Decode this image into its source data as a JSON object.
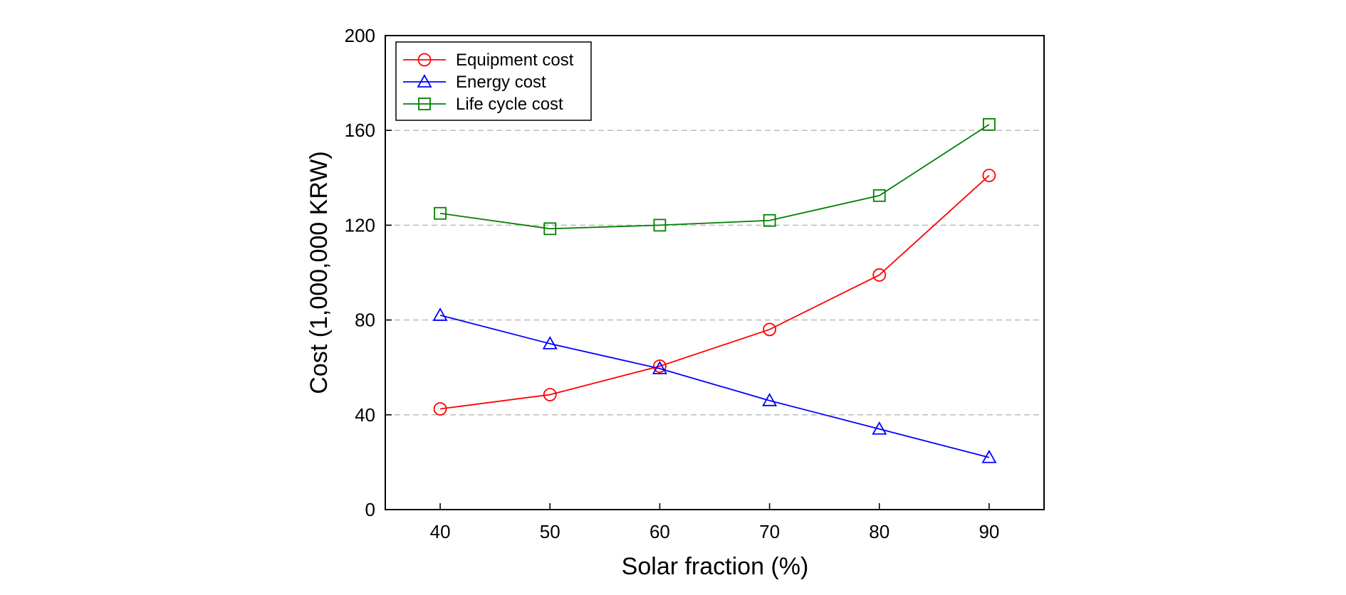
{
  "chart_data": {
    "type": "line",
    "title": "",
    "xlabel": "Solar fraction (%)",
    "ylabel": "Cost (1,000,000 KRW)",
    "x": [
      40,
      50,
      60,
      70,
      80,
      90
    ],
    "xlim": [
      35,
      95
    ],
    "ylim": [
      0,
      200
    ],
    "xticks": [
      "40",
      "50",
      "60",
      "70",
      "80",
      "90"
    ],
    "yticks": [
      "0",
      "40",
      "80",
      "120",
      "160",
      "200"
    ],
    "grid": "horizontal dashed",
    "legend_position": "top-left",
    "series": [
      {
        "name": "Equipment cost",
        "color": "#ff0000",
        "marker": "circle",
        "values": [
          42.5,
          48.5,
          60.5,
          76,
          99,
          141
        ]
      },
      {
        "name": "Energy cost",
        "color": "#0000ff",
        "marker": "triangle",
        "values": [
          82,
          70,
          59.5,
          46,
          34,
          22
        ]
      },
      {
        "name": "Life cycle cost",
        "color": "#008000",
        "marker": "square",
        "values": [
          125,
          118.5,
          120,
          122,
          132.5,
          162.5
        ]
      }
    ]
  }
}
